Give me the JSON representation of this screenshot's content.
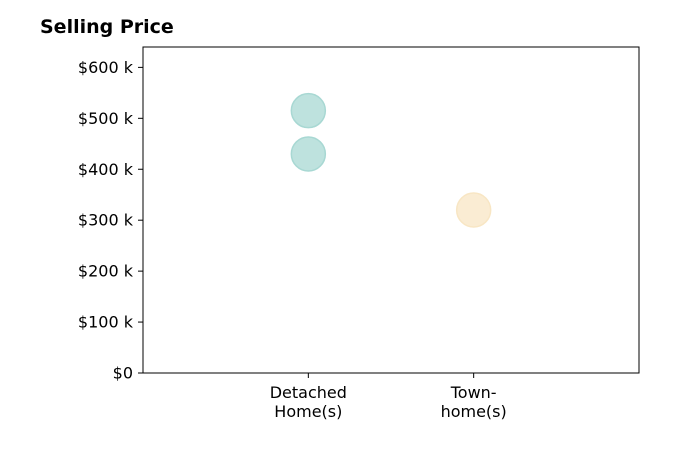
{
  "chart_data": {
    "type": "scatter",
    "title": "Selling Price",
    "categories": [
      "Detached Home(s)",
      "Town-home(s)"
    ],
    "category_tick_lines": [
      [
        "Detached",
        "Home(s)"
      ],
      [
        "Town-",
        "home(s)"
      ]
    ],
    "y_ticks": [
      {
        "value": 0,
        "label": "$0"
      },
      {
        "value": 100000,
        "label": "$100 k"
      },
      {
        "value": 200000,
        "label": "$200 k"
      },
      {
        "value": 300000,
        "label": "$300 k"
      },
      {
        "value": 400000,
        "label": "$400 k"
      },
      {
        "value": 500000,
        "label": "$500 k"
      },
      {
        "value": 600000,
        "label": "$600 k"
      }
    ],
    "ylim": [
      0,
      640000
    ],
    "xlim": [
      -1,
      2
    ],
    "grid": false,
    "points": [
      {
        "category": "Detached Home(s)",
        "y": 515000,
        "color": "#a8d8d3"
      },
      {
        "category": "Detached Home(s)",
        "y": 430000,
        "color": "#a8d8d3"
      },
      {
        "category": "Town-home(s)",
        "y": 320000,
        "color": "#f8e6c4"
      }
    ]
  }
}
